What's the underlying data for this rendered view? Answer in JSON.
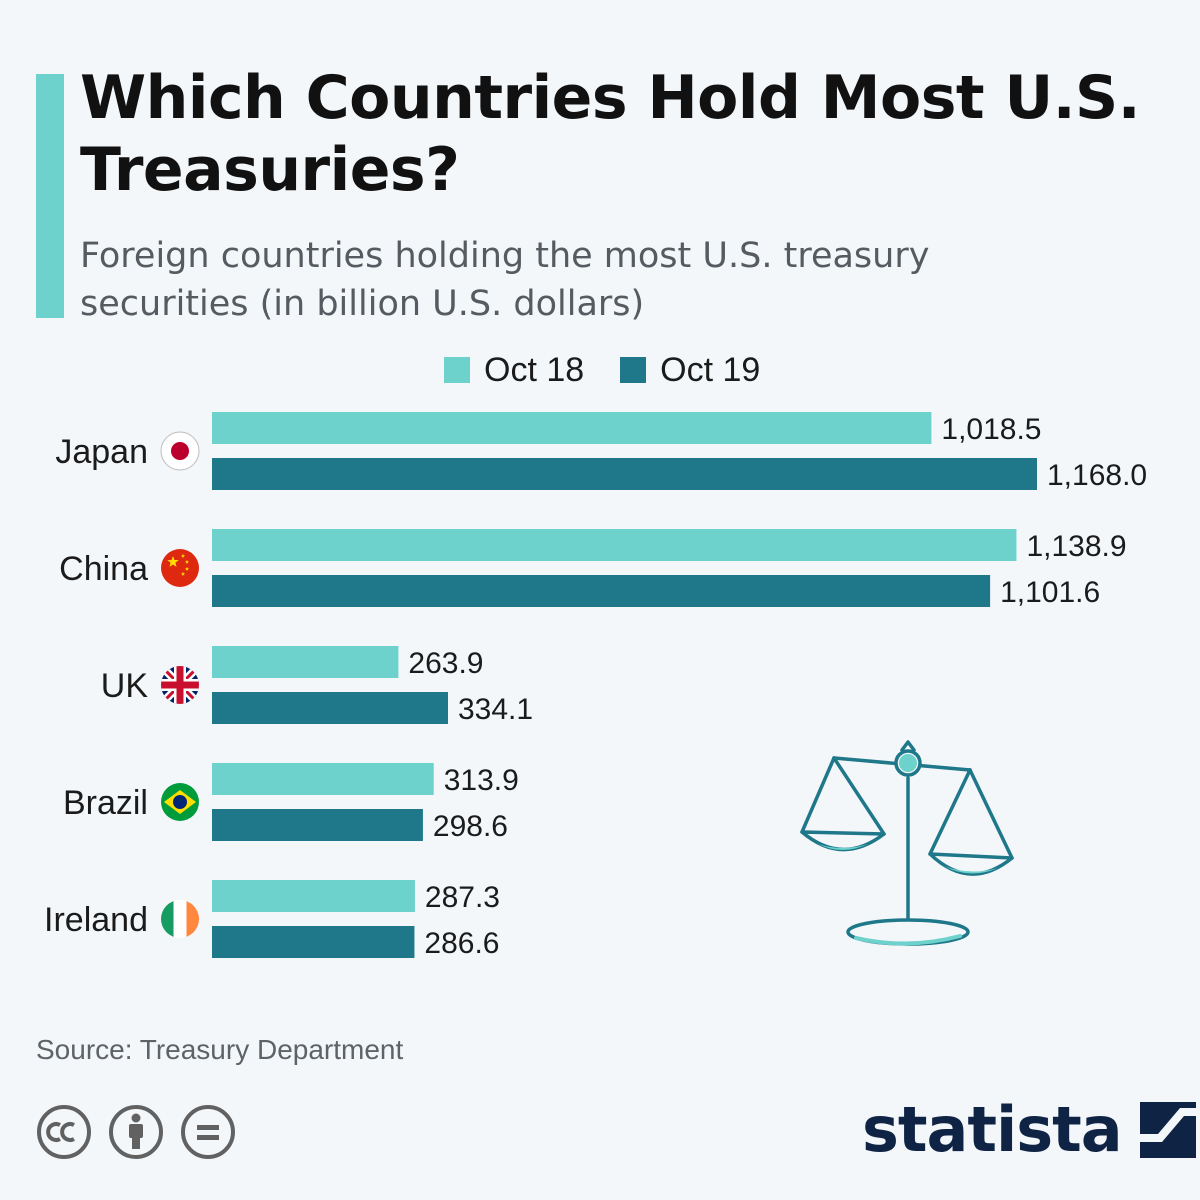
{
  "header": {
    "title": "Which Countries Hold Most U.S. Treasuries?",
    "subtitle": "Foreign countries holding the most U.S. treasury securities (in billion U.S. dollars)"
  },
  "legend": [
    {
      "label": "Oct 18",
      "color": "#6dd1cc"
    },
    {
      "label": "Oct 19",
      "color": "#1f778a"
    }
  ],
  "chart_data": {
    "type": "bar",
    "orientation": "horizontal",
    "title": "Which Countries Hold Most U.S. Treasuries?",
    "subtitle": "Foreign countries holding the most U.S. treasury securities (in billion U.S. dollars)",
    "categories": [
      "Japan",
      "China",
      "UK",
      "Brazil",
      "Ireland"
    ],
    "flags": [
      "japan-flag-icon",
      "china-flag-icon",
      "uk-flag-icon",
      "brazil-flag-icon",
      "ireland-flag-icon"
    ],
    "series": [
      {
        "name": "Oct 18",
        "color": "#6dd1cc",
        "values": [
          1018.5,
          1138.9,
          263.9,
          313.9,
          287.3
        ],
        "labels": [
          "1,018.5",
          "1,138.9",
          "263.9",
          "313.9",
          "287.3"
        ]
      },
      {
        "name": "Oct 19",
        "color": "#1f778a",
        "values": [
          1168.0,
          1101.6,
          334.1,
          298.6,
          286.6
        ],
        "labels": [
          "1,168.0",
          "1,101.6",
          "334.1",
          "298.6",
          "286.6"
        ]
      }
    ],
    "xlim": [
      0,
      1168.0
    ],
    "grid": false,
    "legend_position": "top"
  },
  "footer": {
    "source": "Source: Treasury Department",
    "brand": "statista",
    "license_icons": [
      "cc-icon",
      "by-icon",
      "nd-icon"
    ]
  }
}
